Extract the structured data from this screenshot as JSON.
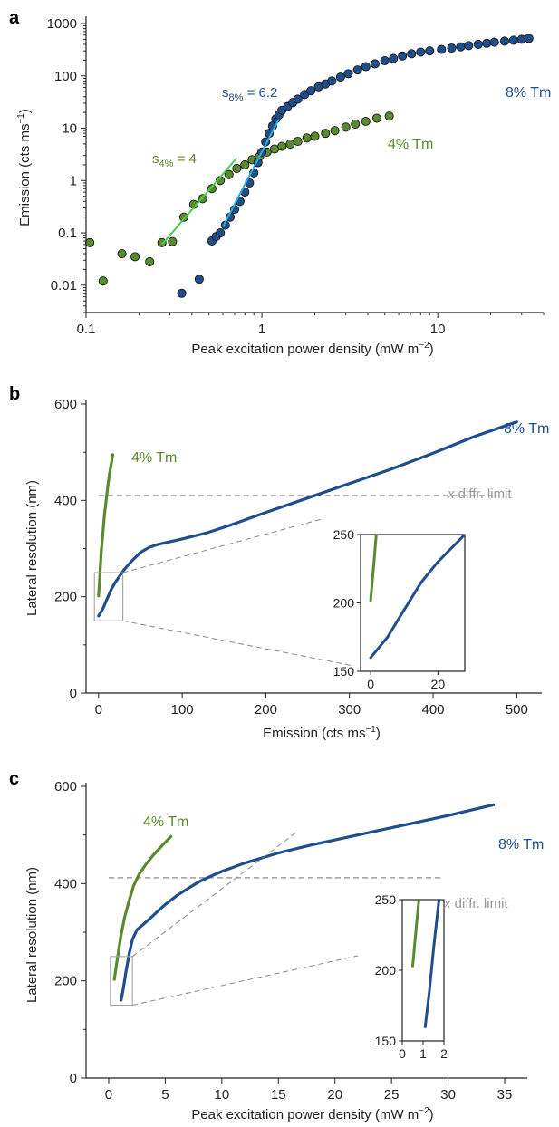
{
  "chart_data": [
    {
      "panel": "a",
      "type": "scatter",
      "xlabel": "Peak excitation power density (mW  m−2)",
      "ylabel": "Emission (cts ms−1)",
      "xscale": "log",
      "yscale": "log",
      "xlim": [
        0.1,
        40
      ],
      "ylim": [
        0.003,
        1000
      ],
      "xticks": [
        "0.1",
        "1",
        "10"
      ],
      "yticks": [
        "0.01",
        "0.1",
        "1",
        "10",
        "100",
        "1000"
      ],
      "series": [
        {
          "name": "8% Tm",
          "color": "#1f4e8c",
          "x": [
            0.35,
            0.44,
            0.52,
            0.55,
            0.58,
            0.62,
            0.66,
            0.7,
            0.75,
            0.8,
            0.85,
            0.9,
            0.95,
            1.0,
            1.05,
            1.1,
            1.15,
            1.2,
            1.25,
            1.3,
            1.4,
            1.5,
            1.6,
            1.75,
            1.9,
            2.1,
            2.3,
            2.5,
            2.8,
            3.1,
            3.5,
            3.9,
            4.4,
            5.0,
            5.6,
            6.3,
            7.1,
            8.0,
            9.0,
            10.5,
            12,
            13.5,
            15,
            17,
            19,
            21,
            24,
            27,
            30,
            33
          ],
          "y": [
            0.007,
            0.013,
            0.07,
            0.085,
            0.1,
            0.14,
            0.2,
            0.28,
            0.4,
            0.6,
            0.9,
            1.4,
            2.2,
            3.5,
            5.5,
            8.0,
            11,
            15,
            18,
            22,
            26,
            31,
            36,
            44,
            52,
            62,
            70,
            80,
            95,
            110,
            130,
            150,
            170,
            195,
            215,
            240,
            265,
            285,
            300,
            320,
            340,
            360,
            380,
            400,
            420,
            440,
            460,
            480,
            500,
            520
          ]
        },
        {
          "name": "4% Tm",
          "color": "#5a8a2e",
          "x": [
            0.105,
            0.125,
            0.16,
            0.19,
            0.23,
            0.27,
            0.31,
            0.36,
            0.41,
            0.46,
            0.52,
            0.58,
            0.65,
            0.72,
            0.8,
            0.88,
            0.97,
            1.07,
            1.18,
            1.3,
            1.45,
            1.6,
            1.8,
            2.0,
            2.3,
            2.6,
            3.0,
            3.4,
            3.9,
            4.5,
            5.3
          ],
          "y": [
            0.065,
            0.012,
            0.04,
            0.035,
            0.028,
            0.065,
            0.068,
            0.2,
            0.35,
            0.45,
            0.7,
            1.0,
            1.3,
            1.7,
            2.0,
            2.5,
            2.9,
            3.5,
            4.0,
            4.5,
            5.0,
            5.6,
            6.5,
            7.0,
            8.0,
            9.0,
            10.5,
            12.0,
            13.5,
            15.5,
            17.0
          ]
        }
      ],
      "fits": [
        {
          "label": "s8% = 6.2",
          "color": "#2ab0d8",
          "x": [
            0.6,
            1.25
          ],
          "y": [
            0.13,
            15
          ]
        },
        {
          "label": "s4% = 4",
          "color": "#49d04a",
          "x": [
            0.27,
            0.72
          ],
          "y": [
            0.06,
            2.7
          ]
        }
      ],
      "annotations": {
        "s8_base": "s",
        "s8_sub": "8%",
        "s8_rest": " = 6.2",
        "s4_base": "s",
        "s4_sub": "4%",
        "s4_rest": " = 4"
      },
      "ylabel_parts": {
        "main": "Emission (cts ms",
        "sup": "−1",
        "end": ")"
      },
      "xlabel_parts": {
        "main": "Peak excitation power density (mW   m",
        "sup": "−2",
        "end": ")"
      }
    },
    {
      "panel": "b",
      "type": "line",
      "xlabel": "Emission (cts ms−1)",
      "ylabel": "Lateral resolution (nm)",
      "xlim": [
        -15,
        530
      ],
      "ylim": [
        0,
        600
      ],
      "xticks": [
        "0",
        "100",
        "200",
        "300",
        "400",
        "500"
      ],
      "yticks": [
        "0",
        "200",
        "400",
        "600"
      ],
      "series": [
        {
          "name": "8% Tm",
          "color": "#1f4e8c",
          "x": [
            0,
            5,
            10,
            15,
            20,
            30,
            40,
            50,
            60,
            70,
            80,
            100,
            130,
            160,
            200,
            250,
            300,
            350,
            400,
            450,
            500
          ],
          "y": [
            160,
            175,
            195,
            215,
            230,
            255,
            275,
            292,
            302,
            308,
            312,
            320,
            333,
            350,
            375,
            405,
            435,
            465,
            498,
            533,
            563
          ]
        },
        {
          "name": "4% Tm",
          "color": "#5a8a2e",
          "x": [
            0,
            1,
            2,
            3,
            5,
            7,
            9,
            11,
            13,
            15,
            17
          ],
          "y": [
            202,
            230,
            260,
            290,
            330,
            370,
            400,
            430,
            455,
            475,
            495
          ]
        }
      ],
      "reference_line": {
        "label_italic": "x",
        "label": " diffr. limit",
        "y": 410
      },
      "inset": {
        "xlim": [
          -3,
          28
        ],
        "ylim": [
          150,
          250
        ],
        "xticks": [
          "0",
          "20"
        ],
        "yticks": [
          "150",
          "200",
          "250"
        ]
      },
      "xlabel_parts": {
        "main": "Emission (cts ms",
        "sup": "−1",
        "end": ")"
      }
    },
    {
      "panel": "c",
      "type": "line",
      "xlabel": "Peak excitation power density (mW  m−2)",
      "ylabel": "Lateral resolution (nm)",
      "xlim": [
        -2,
        37
      ],
      "ylim": [
        0,
        600
      ],
      "xticks": [
        "0",
        "5",
        "10",
        "15",
        "20",
        "25",
        "30",
        "35"
      ],
      "yticks": [
        "0",
        "200",
        "400",
        "600"
      ],
      "series": [
        {
          "name": "8% Tm",
          "color": "#1f4e8c",
          "x": [
            1.1,
            1.3,
            1.5,
            1.8,
            2.1,
            2.5,
            3.0,
            3.5,
            4.2,
            5,
            6,
            7,
            8,
            9,
            10,
            12,
            15,
            18,
            21,
            24,
            27,
            30,
            34
          ],
          "y": [
            160,
            185,
            215,
            255,
            285,
            305,
            315,
            325,
            340,
            357,
            375,
            390,
            404,
            415,
            425,
            442,
            463,
            480,
            495,
            510,
            525,
            540,
            562
          ]
        },
        {
          "name": "4% Tm",
          "color": "#5a8a2e",
          "x": [
            0.5,
            0.7,
            0.9,
            1.1,
            1.4,
            1.8,
            2.2,
            2.7,
            3.3,
            4,
            4.8,
            5.5
          ],
          "y": [
            203,
            235,
            265,
            295,
            330,
            365,
            395,
            420,
            440,
            460,
            480,
            497
          ]
        }
      ],
      "reference_line": {
        "label_italic": "x",
        "label": " diffr. limit",
        "y": 412
      },
      "inset": {
        "xlim": [
          0,
          2
        ],
        "ylim": [
          150,
          250
        ],
        "xticks": [
          "0",
          "1",
          "2"
        ],
        "yticks": [
          "150",
          "200",
          "250"
        ]
      },
      "xlabel_parts": {
        "main": "Peak excitation power density (mW   m",
        "sup": "−2",
        "end": ")"
      }
    }
  ],
  "panel_labels": [
    "a",
    "b",
    "c"
  ]
}
